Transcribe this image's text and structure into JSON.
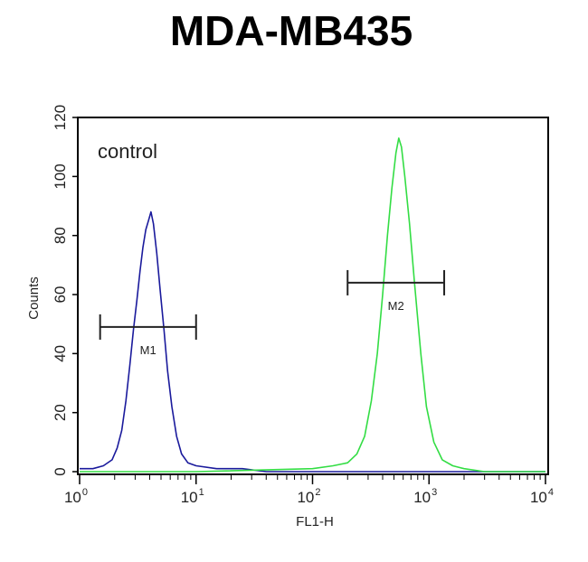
{
  "chart_data": {
    "type": "line",
    "title": "MDA-MB435",
    "xlabel": "FL1-H",
    "ylabel": "Counts",
    "x_scale": "log",
    "xlim": [
      1,
      10000
    ],
    "ylim": [
      0,
      120
    ],
    "x_ticks": [
      {
        "base": "10",
        "exp": "0"
      },
      {
        "base": "10",
        "exp": "1"
      },
      {
        "base": "10",
        "exp": "2"
      },
      {
        "base": "10",
        "exp": "3"
      },
      {
        "base": "10",
        "exp": "4"
      }
    ],
    "y_ticks": [
      "0",
      "20",
      "40",
      "60",
      "80",
      "100",
      "120"
    ],
    "annotation": "control",
    "series": [
      {
        "color": "#1a1a9c",
        "points": [
          [
            1,
            1
          ],
          [
            1.3,
            1
          ],
          [
            1.6,
            2
          ],
          [
            1.9,
            4
          ],
          [
            2.1,
            8
          ],
          [
            2.3,
            14
          ],
          [
            2.5,
            24
          ],
          [
            2.7,
            36
          ],
          [
            2.9,
            48
          ],
          [
            3.1,
            58
          ],
          [
            3.3,
            68
          ],
          [
            3.5,
            76
          ],
          [
            3.7,
            82
          ],
          [
            3.9,
            85
          ],
          [
            4.1,
            88
          ],
          [
            4.3,
            84
          ],
          [
            4.6,
            74
          ],
          [
            4.9,
            62
          ],
          [
            5.3,
            48
          ],
          [
            5.7,
            34
          ],
          [
            6.2,
            22
          ],
          [
            6.8,
            12
          ],
          [
            7.5,
            6
          ],
          [
            8.5,
            3
          ],
          [
            10,
            2
          ],
          [
            15,
            1
          ],
          [
            25,
            1
          ],
          [
            40,
            0
          ],
          [
            100,
            0
          ],
          [
            300,
            0
          ],
          [
            1000,
            0
          ],
          [
            10000,
            0
          ]
        ]
      },
      {
        "color": "#33dd44",
        "points": [
          [
            1,
            0
          ],
          [
            10,
            0
          ],
          [
            100,
            1
          ],
          [
            150,
            2
          ],
          [
            200,
            3
          ],
          [
            240,
            6
          ],
          [
            280,
            12
          ],
          [
            320,
            24
          ],
          [
            360,
            40
          ],
          [
            400,
            60
          ],
          [
            440,
            80
          ],
          [
            480,
            96
          ],
          [
            520,
            108
          ],
          [
            550,
            113
          ],
          [
            580,
            110
          ],
          [
            620,
            100
          ],
          [
            680,
            84
          ],
          [
            750,
            64
          ],
          [
            850,
            40
          ],
          [
            950,
            22
          ],
          [
            1100,
            10
          ],
          [
            1300,
            4
          ],
          [
            1600,
            2
          ],
          [
            2000,
            1
          ],
          [
            3000,
            0
          ],
          [
            10000,
            0
          ]
        ]
      }
    ],
    "markers": [
      {
        "label": "M1",
        "x_start": 1.5,
        "x_end": 10,
        "y": 49
      },
      {
        "label": "M2",
        "x_start": 200,
        "x_end": 1350,
        "y": 64
      }
    ]
  }
}
